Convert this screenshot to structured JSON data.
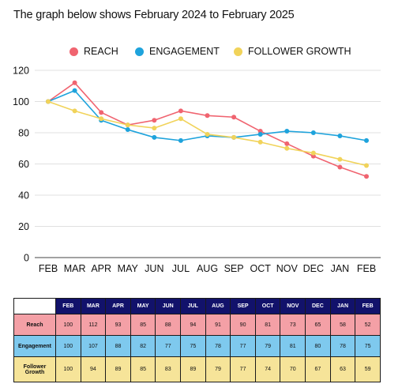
{
  "title": "The graph below shows February 2024 to February 2025",
  "colors": {
    "reach": "#f06470",
    "engagement": "#1ea3dc",
    "follower_growth": "#f1d35a",
    "header_bg": "#12126b",
    "reach_row": "#f4a0a6",
    "engagement_row": "#7ec9ee",
    "follower_row": "#f6e499"
  },
  "chart_data": {
    "type": "line",
    "title": "The graph below shows February 2024 to February 2025",
    "xlabel": "",
    "ylabel": "",
    "categories": [
      "FEB",
      "MAR",
      "APR",
      "MAY",
      "JUN",
      "JUL",
      "AUG",
      "SEP",
      "OCT",
      "NOV",
      "DEC",
      "JAN",
      "FEB"
    ],
    "ylim": [
      0,
      120
    ],
    "yticks": [
      0,
      20,
      40,
      60,
      80,
      100,
      120
    ],
    "grid": true,
    "legend_position": "top-center",
    "series": [
      {
        "name": "REACH",
        "color": "#f06470",
        "values": [
          100,
          112,
          93,
          85,
          88,
          94,
          91,
          90,
          81,
          73,
          65,
          58,
          52
        ]
      },
      {
        "name": "ENGAGEMENT",
        "color": "#1ea3dc",
        "values": [
          100,
          107,
          88,
          82,
          77,
          75,
          78,
          77,
          79,
          81,
          80,
          78,
          75
        ]
      },
      {
        "name": "FOLLOWER GROWTH",
        "color": "#f1d35a",
        "values": [
          100,
          94,
          89,
          85,
          83,
          89,
          79,
          77,
          74,
          70,
          67,
          63,
          59
        ]
      }
    ]
  },
  "table": {
    "headers": [
      "FEB",
      "MAR",
      "APR",
      "MAY",
      "JUN",
      "JUL",
      "AUG",
      "SEP",
      "OCT",
      "NOV",
      "DEC",
      "JAN",
      "FEB"
    ],
    "rows": [
      {
        "label": "Reach",
        "values": [
          "100",
          "112",
          "93",
          "85",
          "88",
          "94",
          "91",
          "90",
          "81",
          "73",
          "65",
          "58",
          "52"
        ]
      },
      {
        "label": "Engagement",
        "values": [
          "100",
          "107",
          "88",
          "82",
          "77",
          "75",
          "78",
          "77",
          "79",
          "81",
          "80",
          "78",
          "75"
        ]
      },
      {
        "label": "Follower\nGrowth",
        "values": [
          "100",
          "94",
          "89",
          "85",
          "83",
          "89",
          "79",
          "77",
          "74",
          "70",
          "67",
          "63",
          "59"
        ]
      }
    ]
  }
}
